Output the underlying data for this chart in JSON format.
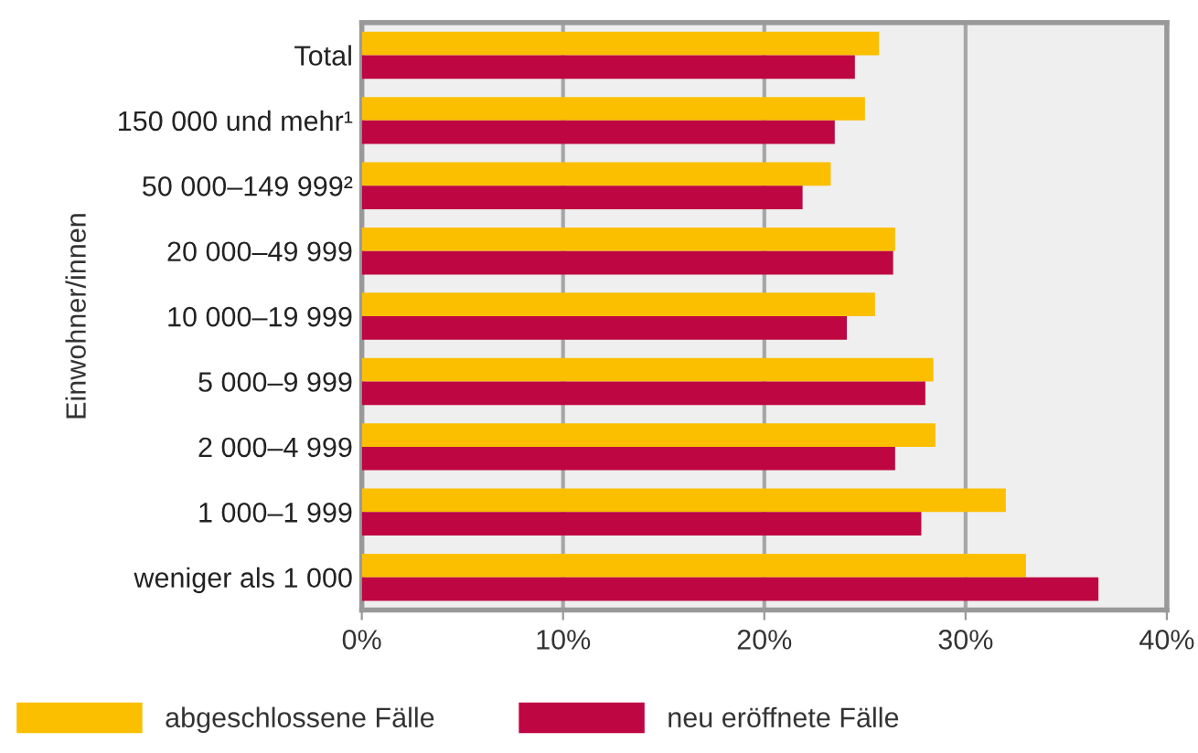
{
  "chart_data": {
    "type": "bar",
    "orientation": "horizontal",
    "ylabel": "Einwohner/innen",
    "categories": [
      "Total",
      "150 000 und mehr¹",
      "50 000–149 999²",
      "20 000–49 999",
      "10 000–19 999",
      "5 000–9 999",
      "2 000–4 999",
      "1 000–1 999",
      "weniger als 1 000"
    ],
    "series": [
      {
        "name": "abgeschlossene Fälle",
        "color": "#fbbf00",
        "values": [
          25.7,
          25.0,
          23.3,
          26.5,
          25.5,
          28.4,
          28.5,
          32.0,
          33.0
        ]
      },
      {
        "name": "neu eröffnete Fälle",
        "color": "#be0642",
        "values": [
          24.5,
          23.5,
          21.9,
          26.4,
          24.1,
          28.0,
          26.5,
          27.8,
          36.6
        ]
      }
    ],
    "xlim": [
      0,
      40
    ],
    "xticks": [
      {
        "value": 0,
        "label": "0%"
      },
      {
        "value": 10,
        "label": "10%"
      },
      {
        "value": 20,
        "label": "20%"
      },
      {
        "value": 30,
        "label": "30%"
      },
      {
        "value": 40,
        "label": "40%"
      }
    ],
    "grid": "x",
    "legend": "bottom"
  }
}
